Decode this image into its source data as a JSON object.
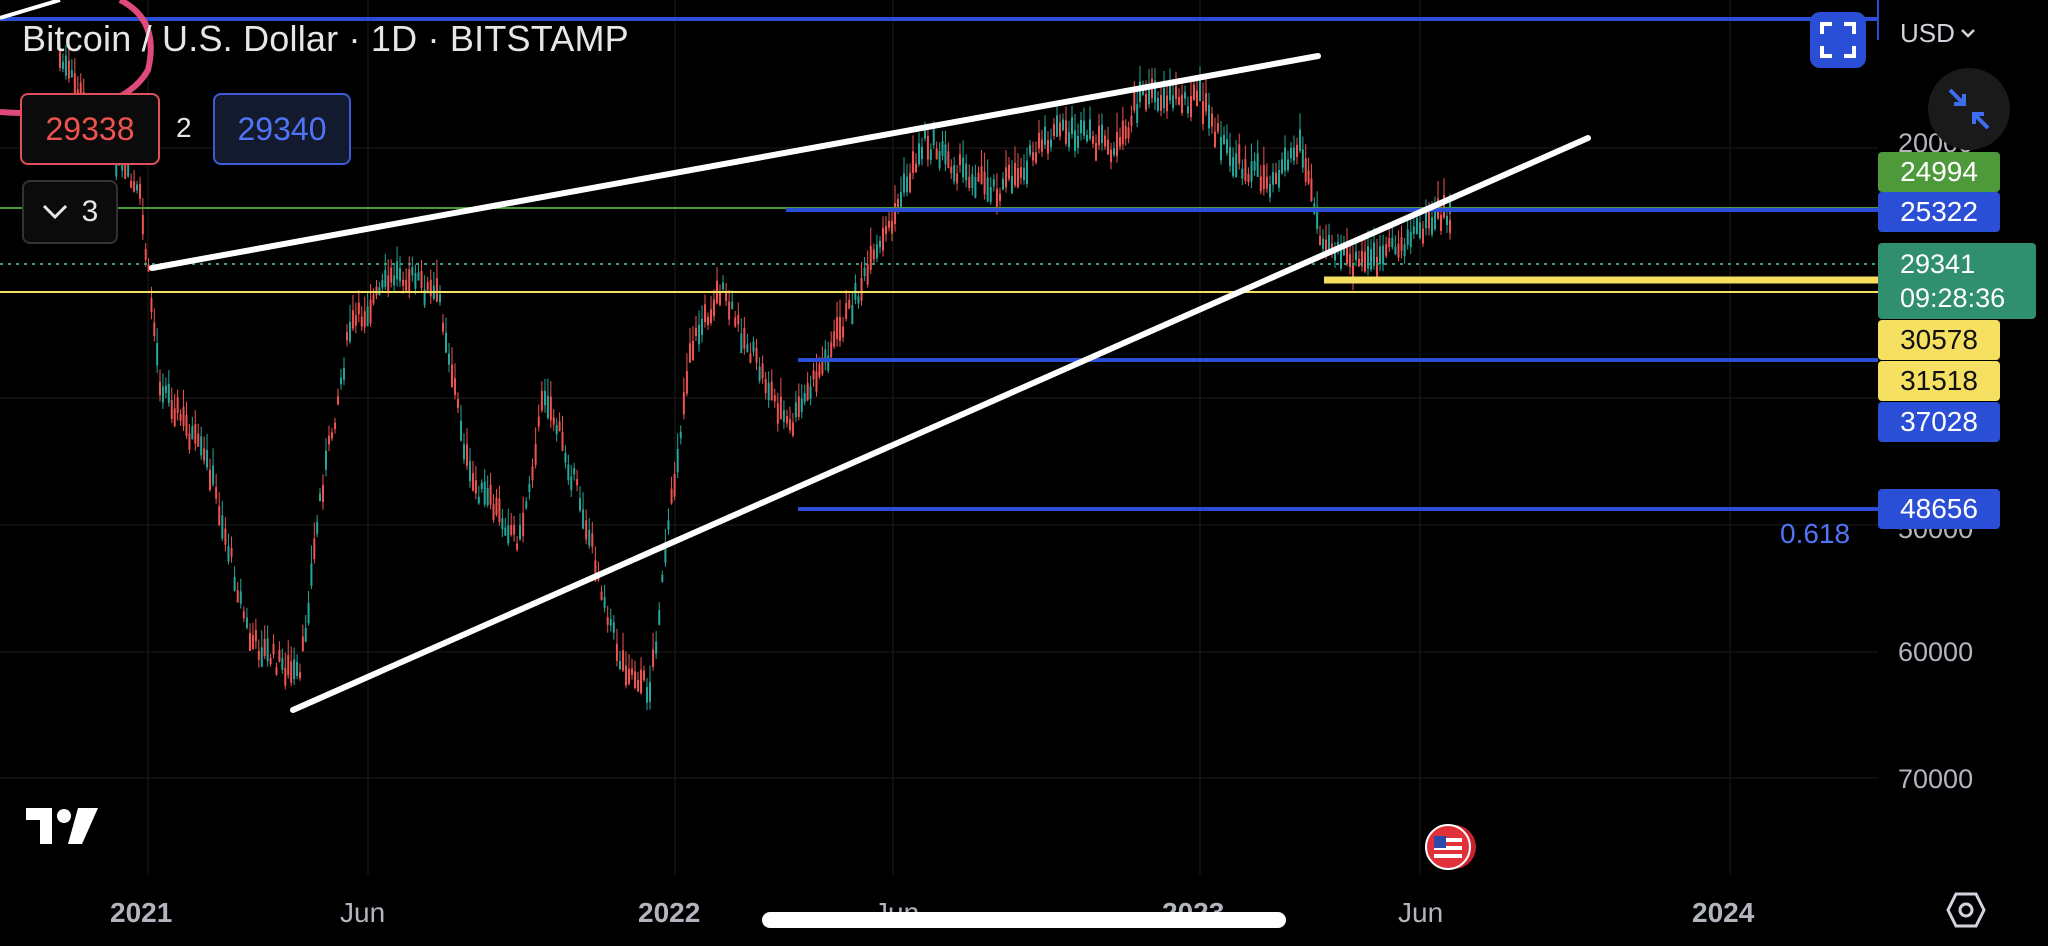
{
  "header": {
    "title": "Bitcoin / U.S. Dollar · 1D · BITSTAMP"
  },
  "quote": {
    "bid": "29338",
    "spread": "2",
    "ask": "29340"
  },
  "indicators": {
    "collapsed_count": "3"
  },
  "toolbar": {
    "currency": "USD",
    "fullscreen_icon": "fullscreen-icon",
    "shrink_icon": "shrink-icon"
  },
  "price_axis": {
    "ticks": [
      "20000",
      "50000",
      "60000",
      "70000"
    ],
    "labels": [
      {
        "value": "24994",
        "color": "#4e9a3a"
      },
      {
        "value": "25322",
        "color": "#2a4fd6"
      },
      {
        "value": "30578",
        "color": "#f5e061"
      },
      {
        "value": "31518",
        "color": "#f5e061"
      },
      {
        "value": "37028",
        "color": "#2a4fd6"
      },
      {
        "value": "48656",
        "color": "#2a4fd6"
      }
    ],
    "current_price": "29341",
    "countdown": "09:28:36",
    "fib_label": "0.618"
  },
  "time_axis": {
    "labels": [
      {
        "text": "2021",
        "bold": true
      },
      {
        "text": "Jun",
        "bold": false
      },
      {
        "text": "2022",
        "bold": true
      },
      {
        "text": "Jun",
        "bold": false
      },
      {
        "text": "2023",
        "bold": true
      },
      {
        "text": "Jun",
        "bold": false
      },
      {
        "text": "2024",
        "bold": true
      }
    ]
  },
  "colors": {
    "bull": "#26a69a",
    "bear": "#ef5350",
    "level_blue": "#2a4fd6",
    "level_yellow": "#f5e061",
    "level_green": "#4e9a3a",
    "trend": "#ffffff"
  }
}
